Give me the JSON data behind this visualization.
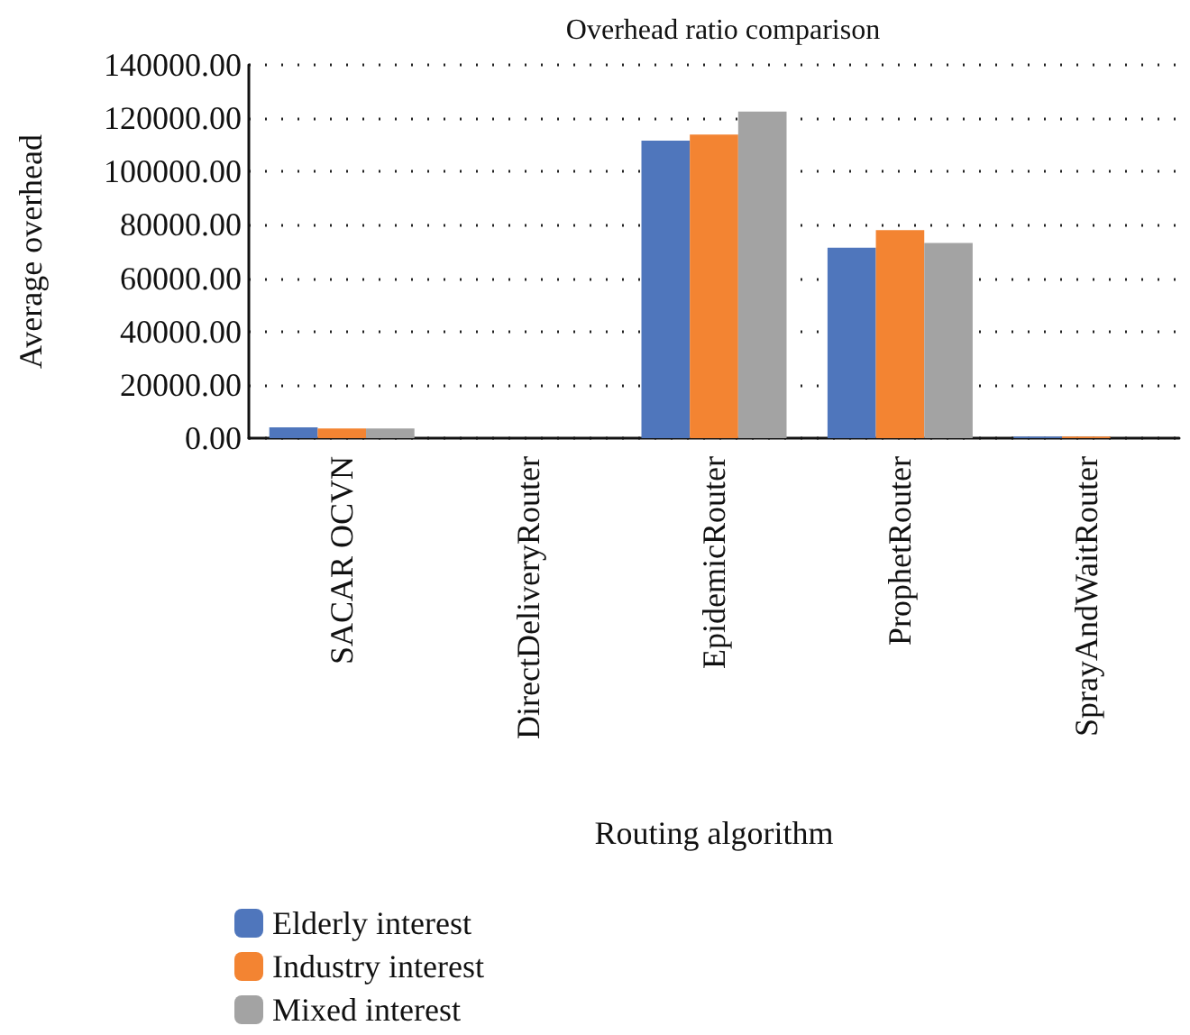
{
  "chart_data": {
    "type": "bar",
    "title": "Overhead ratio comparison",
    "xlabel": "Routing algorithm",
    "ylabel": "Average overhead",
    "categories": [
      "SACAR OCVN",
      "DirectDeliveryRouter",
      "EpidemicRouter",
      "ProphetRouter",
      "SprayAndWaitRouter"
    ],
    "series": [
      {
        "name": "Elderly interest",
        "color": "#4f76bc",
        "values": [
          4100,
          0,
          111600,
          71400,
          600
        ]
      },
      {
        "name": "Industry interest",
        "color": "#f38432",
        "values": [
          3600,
          0,
          113900,
          78000,
          600
        ]
      },
      {
        "name": "Mixed interest",
        "color": "#a3a3a3",
        "values": [
          3600,
          0,
          122500,
          73200,
          0
        ]
      }
    ],
    "ylim": [
      0,
      140000
    ],
    "yticks": [
      {
        "value": 0,
        "label": "0.00"
      },
      {
        "value": 20000,
        "label": "20000.00"
      },
      {
        "value": 40000,
        "label": "40000.00"
      },
      {
        "value": 60000,
        "label": "60000.00"
      },
      {
        "value": 80000,
        "label": "80000.00"
      },
      {
        "value": 100000,
        "label": "100000.00"
      },
      {
        "value": 120000,
        "label": "120000.00"
      },
      {
        "value": 140000,
        "label": "140000.00"
      }
    ],
    "grid": "y",
    "legend": "bottom left"
  }
}
